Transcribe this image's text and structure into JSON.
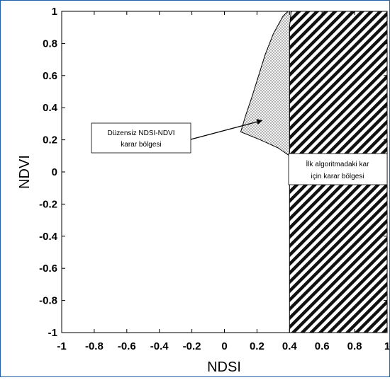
{
  "chart_data": {
    "type": "area",
    "xlabel": "NDSI",
    "ylabel": "NDVI",
    "xlim": [
      -1,
      1
    ],
    "ylim": [
      -1,
      1
    ],
    "x_ticks": [
      -1,
      -0.8,
      -0.6,
      -0.4,
      -0.2,
      0,
      0.2,
      0.4,
      0.6,
      0.8,
      1
    ],
    "y_ticks": [
      -1,
      -0.8,
      -0.6,
      -0.4,
      -0.2,
      0,
      0.2,
      0.4,
      0.6,
      0.8,
      1
    ],
    "x_tick_labels": [
      "-1",
      "-0.8",
      "-0.6",
      "-0.4",
      "-0.2",
      "0",
      "0.2",
      "0.4",
      "0.6",
      "0.8",
      "1"
    ],
    "y_tick_labels": [
      "-1",
      "-0.8",
      "-0.6",
      "-0.4",
      "-0.2",
      "0",
      "0.2",
      "0.4",
      "0.6",
      "0.8",
      "1"
    ],
    "grid": false,
    "regions": [
      {
        "label_lines": [
          "Düzensiz NDSI-NDVI",
          "karar bölgesi"
        ],
        "fill": "dotted",
        "boundary": [
          [
            0.1,
            0.25
          ],
          [
            0.13,
            0.35
          ],
          [
            0.17,
            0.47
          ],
          [
            0.21,
            0.6
          ],
          [
            0.25,
            0.73
          ],
          [
            0.3,
            0.86
          ],
          [
            0.36,
            0.97
          ],
          [
            0.39,
            1.0
          ],
          [
            0.41,
            1.0
          ],
          [
            0.4,
            0.9
          ],
          [
            0.4,
            0.1
          ],
          [
            0.33,
            0.15
          ],
          [
            0.22,
            0.2
          ]
        ]
      },
      {
        "label_lines": [
          "İlk algoritmadaki kar",
          "için karar bölgesi"
        ],
        "fill": "hatched",
        "x_range": [
          0.4,
          1
        ],
        "y_range": [
          -1,
          1
        ]
      }
    ],
    "annotations": [
      {
        "text_lines": [
          "Düzensiz NDSI-NDVI",
          "karar bölgesi"
        ],
        "arrow_to": [
          0.23,
          0.32
        ]
      },
      {
        "text_lines": [
          "İlk algoritmadaki kar",
          "için karar bölgesi"
        ]
      }
    ]
  }
}
